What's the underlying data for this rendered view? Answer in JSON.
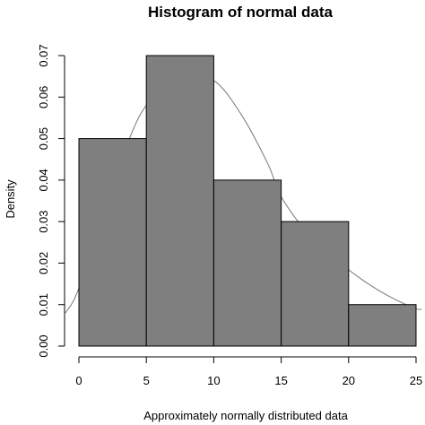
{
  "chart_data": {
    "type": "bar",
    "title": "Histogram of normal data",
    "xlabel": "Approximately normally distributed data",
    "ylabel": "Density",
    "bins": [
      {
        "x0": 0,
        "x1": 5,
        "value": 0.05
      },
      {
        "x0": 5,
        "x1": 10,
        "value": 0.07
      },
      {
        "x0": 10,
        "x1": 15,
        "value": 0.04
      },
      {
        "x0": 15,
        "x1": 20,
        "value": 0.03
      },
      {
        "x0": 20,
        "x1": 25,
        "value": 0.01
      }
    ],
    "xlim": [
      0,
      25
    ],
    "ylim": [
      0,
      0.07
    ],
    "x_ticks": [
      "0",
      "5",
      "10",
      "15",
      "20",
      "25"
    ],
    "y_ticks": [
      "0.00",
      "0.01",
      "0.02",
      "0.03",
      "0.04",
      "0.05",
      "0.06",
      "0.07"
    ],
    "density_curve": {
      "x": [
        -1,
        0,
        2,
        4,
        5,
        6,
        8,
        10,
        12,
        14,
        15,
        17,
        19,
        21,
        23,
        25,
        25.4
      ],
      "y": [
        0.008,
        0.014,
        0.035,
        0.052,
        0.058,
        0.061,
        0.064,
        0.064,
        0.056,
        0.044,
        0.036,
        0.027,
        0.021,
        0.016,
        0.012,
        0.009,
        0.009
      ]
    },
    "grid": false,
    "colors": {
      "bar_fill": "#7f7f7f",
      "bar_edge": "#000000",
      "curve": "#777777"
    }
  }
}
